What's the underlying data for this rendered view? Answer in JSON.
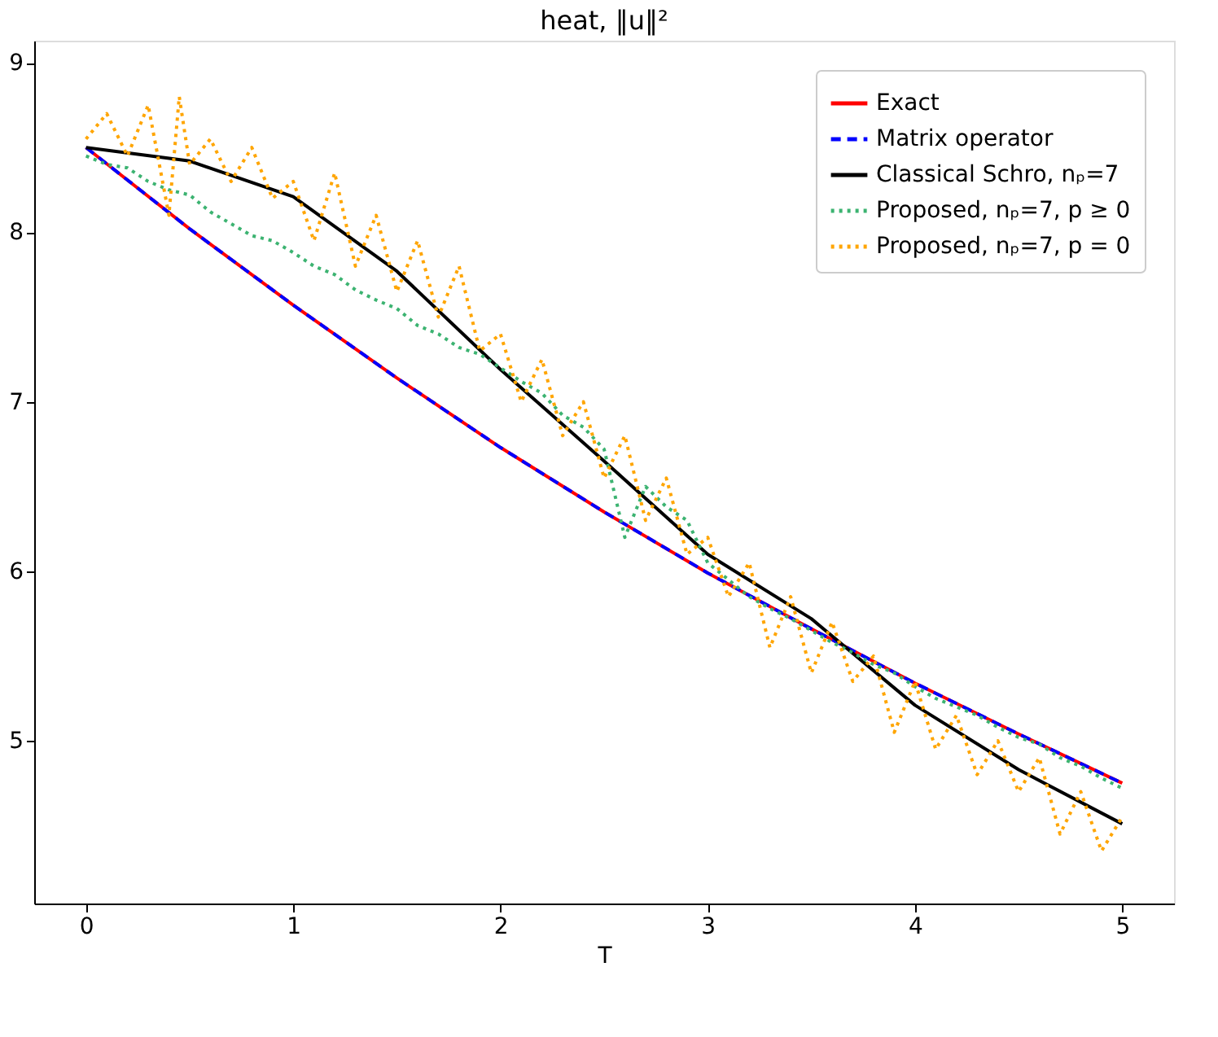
{
  "chart_data": {
    "type": "line",
    "title": "heat, ‖u‖²",
    "xlabel": "T",
    "xlim": [
      -0.25,
      5.25
    ],
    "xticks": [
      0,
      1,
      2,
      3,
      4,
      5
    ],
    "ylim": [
      4.04,
      9.13
    ],
    "yticks": [
      5,
      6,
      7,
      8,
      9
    ],
    "grid": false,
    "legend": "top right",
    "marker": "none",
    "series": [
      {
        "name": "Exact",
        "color": "#ff0000",
        "line_style": "solid",
        "x": [
          0,
          0.5,
          1,
          1.5,
          2,
          2.5,
          3,
          3.5,
          4,
          4.5,
          5
        ],
        "values": [
          8.5,
          8.02,
          7.57,
          7.14,
          6.73,
          6.35,
          5.99,
          5.66,
          5.34,
          5.04,
          4.75
        ]
      },
      {
        "name": "Matrix operator",
        "color": "#0000ff",
        "line_style": "dashed",
        "x": [
          0,
          0.5,
          1,
          1.5,
          2,
          2.5,
          3,
          3.5,
          4,
          4.5,
          5
        ],
        "values": [
          8.5,
          8.02,
          7.57,
          7.14,
          6.73,
          6.35,
          5.99,
          5.66,
          5.34,
          5.04,
          4.75
        ]
      },
      {
        "name": "Classical Schro, nₚ=7",
        "color": "#000000",
        "line_style": "solid",
        "x": [
          0,
          0.5,
          1,
          1.5,
          2,
          2.5,
          3,
          3.5,
          4,
          4.5,
          5
        ],
        "values": [
          8.5,
          8.42,
          8.21,
          7.77,
          7.19,
          6.65,
          6.1,
          5.72,
          5.21,
          4.83,
          4.51
        ]
      },
      {
        "name": "Proposed, nₚ=7, p ≥ 0",
        "color": "#3cb371",
        "line_style": "dotted",
        "x": [
          0,
          0.1,
          0.2,
          0.3,
          0.4,
          0.5,
          0.6,
          0.7,
          0.8,
          0.9,
          1.0,
          1.1,
          1.2,
          1.3,
          1.4,
          1.5,
          1.6,
          1.7,
          1.8,
          1.9,
          2.0,
          2.1,
          2.2,
          2.3,
          2.4,
          2.5,
          2.6,
          2.7,
          2.8,
          2.9,
          3.0,
          3.1,
          3.2,
          3.3,
          3.4,
          3.5,
          3.6,
          3.7,
          3.8,
          3.9,
          4.0,
          4.1,
          4.2,
          4.3,
          4.4,
          4.5,
          4.6,
          4.7,
          4.8,
          4.9,
          5.0
        ],
        "values": [
          8.45,
          8.4,
          8.38,
          8.3,
          8.25,
          8.22,
          8.12,
          8.05,
          7.98,
          7.95,
          7.88,
          7.8,
          7.75,
          7.66,
          7.6,
          7.55,
          7.45,
          7.4,
          7.32,
          7.28,
          7.2,
          7.12,
          7.05,
          6.92,
          6.85,
          6.72,
          6.2,
          6.5,
          6.38,
          6.3,
          6.05,
          5.95,
          5.85,
          5.78,
          5.72,
          5.65,
          5.58,
          5.52,
          5.45,
          5.4,
          5.32,
          5.25,
          5.2,
          5.15,
          5.08,
          5.02,
          4.98,
          4.9,
          4.85,
          4.78,
          4.72
        ]
      },
      {
        "name": "Proposed, nₚ=7, p = 0",
        "color": "#ffa500",
        "line_style": "dotted",
        "x": [
          0,
          0.1,
          0.2,
          0.3,
          0.4,
          0.45,
          0.5,
          0.6,
          0.7,
          0.8,
          0.9,
          1.0,
          1.1,
          1.2,
          1.3,
          1.4,
          1.5,
          1.6,
          1.7,
          1.8,
          1.9,
          2.0,
          2.1,
          2.2,
          2.3,
          2.4,
          2.5,
          2.6,
          2.7,
          2.8,
          2.9,
          3.0,
          3.1,
          3.2,
          3.3,
          3.4,
          3.5,
          3.6,
          3.7,
          3.8,
          3.9,
          4.0,
          4.1,
          4.2,
          4.3,
          4.4,
          4.5,
          4.6,
          4.7,
          4.8,
          4.9,
          5.0
        ],
        "values": [
          8.55,
          8.7,
          8.45,
          8.75,
          8.1,
          8.8,
          8.4,
          8.55,
          8.3,
          8.5,
          8.2,
          8.3,
          7.95,
          8.35,
          7.8,
          8.1,
          7.65,
          7.95,
          7.5,
          7.8,
          7.3,
          7.4,
          7.0,
          7.25,
          6.8,
          7.0,
          6.55,
          6.8,
          6.3,
          6.55,
          6.1,
          6.2,
          5.85,
          6.05,
          5.55,
          5.85,
          5.4,
          5.7,
          5.35,
          5.5,
          5.05,
          5.35,
          4.95,
          5.15,
          4.8,
          5.0,
          4.7,
          4.9,
          4.45,
          4.7,
          4.35,
          4.55
        ]
      }
    ]
  }
}
